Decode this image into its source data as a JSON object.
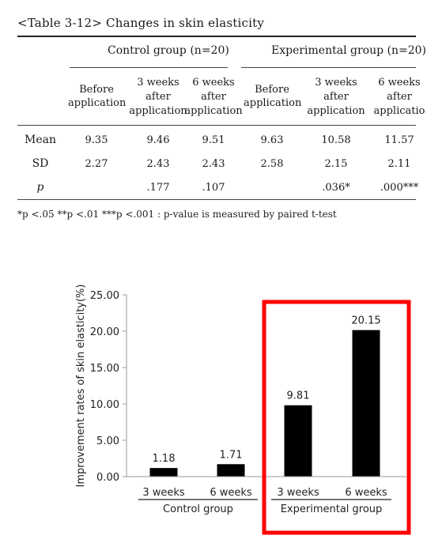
{
  "table": {
    "caption": "<Table 3-12> Changes in skin elasticity",
    "group_headers": [
      "Control group (n=20)",
      "Experimental group (n=20)"
    ],
    "sub_headers": [
      [
        "Before",
        "application"
      ],
      [
        "3 weeks",
        "after",
        "application"
      ],
      [
        "6 weeks",
        "after",
        "application"
      ],
      [
        "Before",
        "application"
      ],
      [
        "3 weeks",
        "after",
        "application"
      ],
      [
        "6 weeks",
        "after",
        "applicatio"
      ]
    ],
    "rows": [
      {
        "label": "Mean",
        "values": [
          "9.35",
          "9.46",
          "9.51",
          "9.63",
          "10.58",
          "11.57"
        ]
      },
      {
        "label": "SD",
        "values": [
          "2.27",
          "2.43",
          "2.43",
          "2.58",
          "2.15",
          "2.11"
        ]
      },
      {
        "label": "p",
        "values": [
          "",
          ".177",
          ".107",
          "",
          ".036*",
          ".000***"
        ]
      }
    ],
    "footnote": "*p <.05 **p <.01 ***p <.001 : p-value is measured by paired t-test"
  },
  "chart_data": {
    "type": "bar",
    "ylabel": "Improvement rates of skin elasticity(%)",
    "ylim": [
      0,
      25
    ],
    "yticks": [
      "0.00",
      "5.00",
      "10.00",
      "15.00",
      "20.00",
      "25.00"
    ],
    "categories": [
      "3 weeks",
      "6 weeks",
      "3 weeks",
      "6 weeks"
    ],
    "values": [
      1.18,
      1.71,
      9.81,
      20.15
    ],
    "value_labels": [
      "1.18",
      "1.71",
      "9.81",
      "20.15"
    ],
    "groups": [
      {
        "name": "Control group",
        "categories": [
          0,
          1
        ]
      },
      {
        "name": "Experimental group",
        "categories": [
          2,
          3
        ]
      }
    ],
    "bar_color": "#000000",
    "highlight_color": "#ff0000",
    "highlight_group": "Experimental group"
  }
}
